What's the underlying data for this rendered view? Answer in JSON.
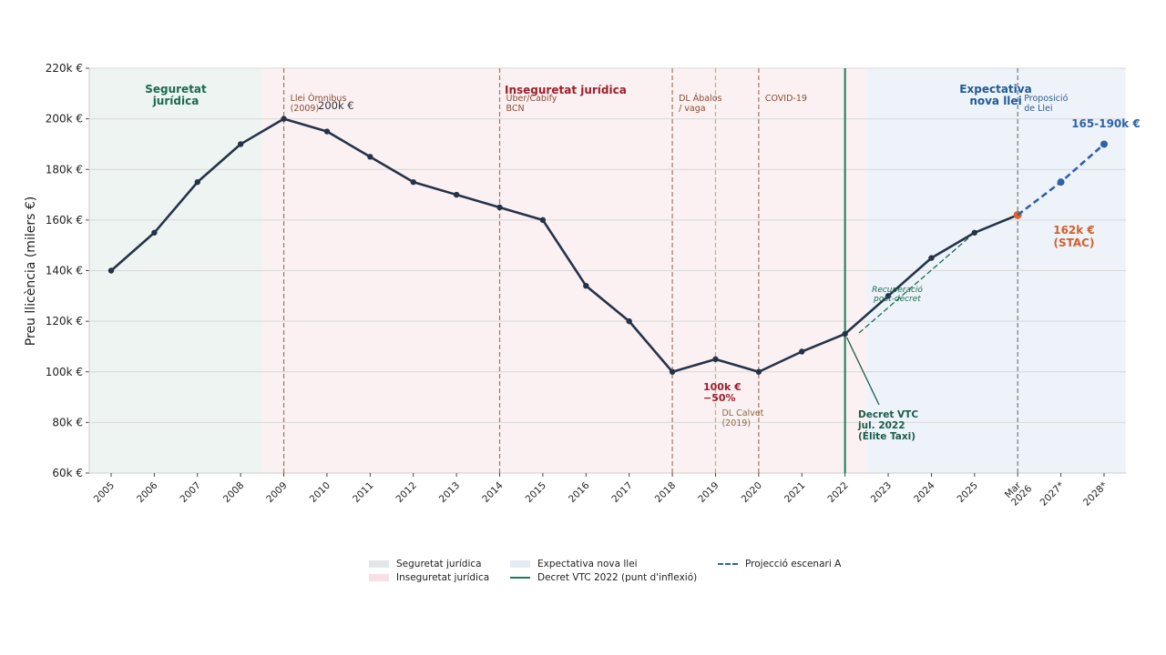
{
  "chart_data": {
    "type": "line",
    "ylabel": "Preu llicència (milers €)",
    "ylim": [
      60,
      220
    ],
    "yticks": [
      60,
      80,
      100,
      120,
      140,
      160,
      180,
      200,
      220
    ],
    "ytick_labels": [
      "60k €",
      "80k €",
      "100k €",
      "120k €",
      "140k €",
      "160k €",
      "180k €",
      "200k €",
      "220k €"
    ],
    "categories": [
      "2005",
      "2006",
      "2007",
      "2008",
      "2009",
      "2010",
      "2011",
      "2012",
      "2013",
      "2014",
      "2015",
      "2016",
      "2017",
      "2018",
      "2019",
      "2020",
      "2021",
      "2022",
      "2023",
      "2024",
      "2025",
      "Mar 2026",
      "2027*",
      "2028*"
    ],
    "grid": "horizontal",
    "series": [
      {
        "key": "historic",
        "values": [
          140,
          155,
          175,
          190,
          200,
          195,
          185,
          175,
          170,
          165,
          160,
          134,
          120,
          100,
          105,
          100,
          108,
          115,
          130,
          145,
          155,
          162,
          null,
          null
        ],
        "color": "#253349"
      },
      {
        "name": "Projecció escenari A",
        "key": "projection",
        "values": [
          null,
          null,
          null,
          null,
          null,
          null,
          null,
          null,
          null,
          null,
          null,
          null,
          null,
          null,
          null,
          null,
          null,
          null,
          null,
          null,
          null,
          162,
          175,
          190
        ],
        "color": "#2e63a6",
        "style": "dashed"
      }
    ],
    "regions": [
      {
        "name": "Seguretat jurídica",
        "label": "Seguretat\njurídica",
        "from": -0.5,
        "to": 3.5,
        "color": "#eef4f2",
        "label_color": "#1a6b4e"
      },
      {
        "name": "Inseguretat jurídica",
        "label": "Inseguretat jurídica",
        "from": 3.5,
        "to": 17.5,
        "color": "#fbf1f2",
        "label_color": "#9c1f2a"
      },
      {
        "name": "Expectativa nova llei",
        "label": "Expectativa\nnova llei",
        "from": 17.5,
        "to": 23.5,
        "color": "#eef3fa",
        "label_color": "#1f5a99"
      }
    ],
    "event_lines": [
      {
        "at": 4,
        "label": "Llei Òmnibus\n(2009)",
        "color": "#a0785e"
      },
      {
        "at": 9,
        "label": "Uber/Cabify\nBCN",
        "color": "#a0785e"
      },
      {
        "at": 13,
        "label": "DL Ábalos\n/ vaga",
        "color": "#a0785e"
      },
      {
        "at": 14,
        "label": "DL Calvet\n(2019)",
        "color": "#c8a882"
      },
      {
        "at": 15,
        "label": "COVID-19",
        "color": "#a0785e"
      },
      {
        "at": 21,
        "label": "Proposició\nde Llei",
        "color": "#6b7a8a"
      }
    ],
    "decret_line": {
      "at": 17,
      "name": "Decret VTC 2022 (punt d'inflexió)",
      "color": "#1f7a5a"
    },
    "annotations": {
      "peak": "200k €",
      "trough": "100k €\n−50%",
      "decret": "Decret VTC\njul. 2022\n(Élite Taxi)",
      "recovery": "Recuperació\npost-decret",
      "stac": "162k €\n(STAC)",
      "projection": "165-190k €"
    },
    "colors": {
      "stac_point": "#e0622a",
      "stac_text": "#d2602c",
      "projection": "#2e63a6",
      "trough": "#9c1f2a",
      "decret": "#1a5c48"
    },
    "legend": {
      "placement": "bottom",
      "items": [
        {
          "label": "Seguretat jurídica",
          "color": "#e3e6e8",
          "kind": "patch"
        },
        {
          "label": "Expectativa nova llei",
          "color": "#e4ebf3",
          "kind": "patch"
        },
        {
          "label": "Projecció escenari A",
          "color": "#2e63a6",
          "kind": "dashed"
        },
        {
          "label": "Inseguretat jurídica",
          "color": "#f7e1e4",
          "kind": "patch"
        },
        {
          "label": "Decret VTC 2022 (punt d'inflexió)",
          "color": "#1f7a5a",
          "kind": "line"
        }
      ]
    }
  }
}
